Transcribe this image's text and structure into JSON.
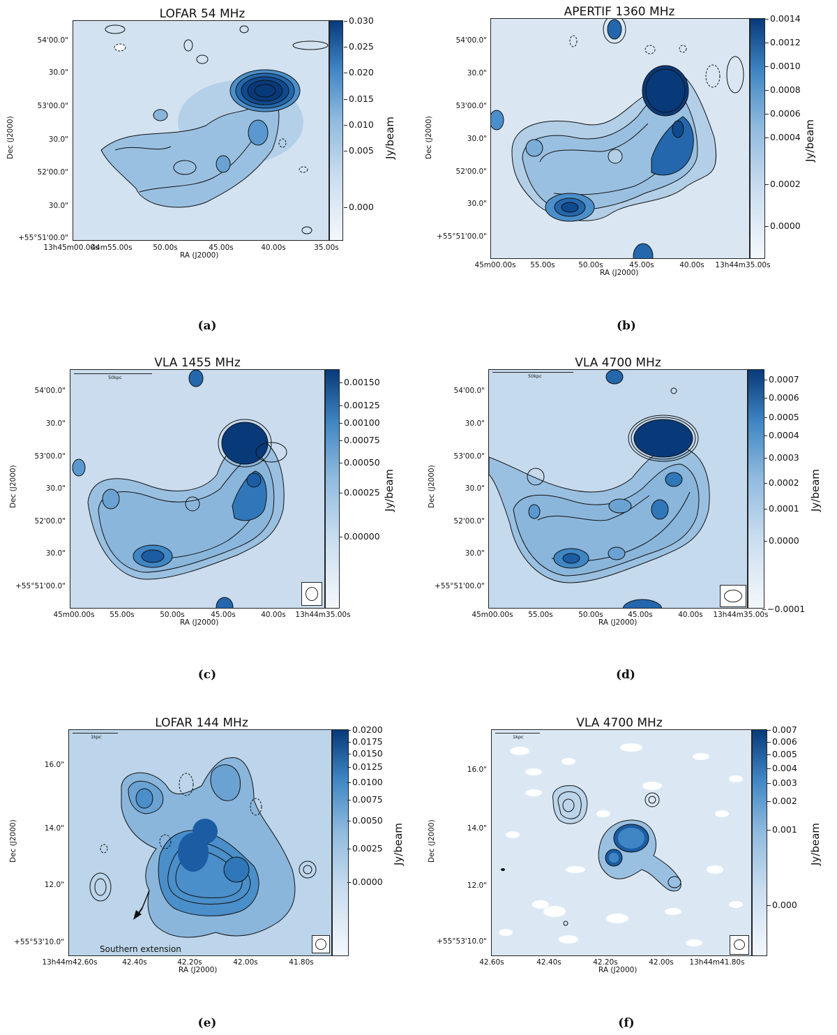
{
  "panels": [
    {
      "title": "LOFAR 54 MHz",
      "caption": "(a)",
      "colorbar": {
        "label": "Jy/beam",
        "ticks": [
          "0.030",
          "0.025",
          "0.020",
          "0.015",
          "0.010",
          "0.005",
          "0.000"
        ]
      },
      "yticks": [
        "54'00.0\"",
        "30.0\"",
        "53'00.0\"",
        "30.0\"",
        "52'00.0\"",
        "30.0\"",
        "+55°51'00.0\""
      ],
      "xticks": [
        "13h45m00.00s",
        "44m55.00s",
        "50.00s",
        "45.00s",
        "40.00s",
        "35.00s"
      ],
      "xlabel": "RA (J2000)",
      "ylabel": "Dec (J2000)"
    },
    {
      "title": "APERTIF 1360 MHz",
      "caption": "(b)",
      "colorbar": {
        "label": "Jy/beam",
        "ticks": [
          "0.0014",
          "0.0012",
          "0.0010",
          "0.0008",
          "0.0006",
          "0.0004",
          "0.0002",
          "0.0000"
        ]
      },
      "yticks": [
        "54'00.0\"",
        "30.0\"",
        "53'00.0\"",
        "30.0\"",
        "52'00.0\"",
        "30.0\"",
        "+55°51'00.0\""
      ],
      "xticks": [
        "45m00.00s",
        "55.00s",
        "50.00s",
        "45.00s",
        "40.00s",
        "13h44m35.00s"
      ],
      "xlabel": "RA (J2000)",
      "ylabel": "Dec (J2000)"
    },
    {
      "title": "VLA 1455 MHz",
      "caption": "(c)",
      "scalebar": "50kpc",
      "colorbar": {
        "label": "Jy/beam",
        "ticks": [
          "0.00150",
          "0.00125",
          "0.00100",
          "0.00075",
          "0.00050",
          "0.00025",
          "0.00000"
        ]
      },
      "yticks": [
        "54'00.0\"",
        "30.0\"",
        "53'00.0\"",
        "30.0\"",
        "52'00.0\"",
        "30.0\"",
        "+55°51'00.0\""
      ],
      "xticks": [
        "45m00.00s",
        "55.00s",
        "50.00s",
        "45.00s",
        "40.00s",
        "13h44m35.00s"
      ],
      "xlabel": "RA (J2000)",
      "ylabel": "Dec (J2000)"
    },
    {
      "title": "VLA 4700 MHz",
      "caption": "(d)",
      "scalebar": "50kpc",
      "colorbar": {
        "label": "Jy/beam",
        "ticks": [
          "0.0007",
          "0.0006",
          "0.0005",
          "0.0004",
          "0.0003",
          "0.0002",
          "0.0001",
          "0.0000",
          "−0.0001"
        ]
      },
      "yticks": [
        "54'00.0\"",
        "30.0\"",
        "53'00.0\"",
        "30.0\"",
        "52'00.0\"",
        "30.0\"",
        "+55°51'00.0\""
      ],
      "xticks": [
        "45m00.00s",
        "55.00s",
        "50.00s",
        "45.00s",
        "40.00s",
        "13h44m35.00s"
      ],
      "xlabel": "RA (J2000)",
      "ylabel": "Dec (J2000)"
    },
    {
      "title": "LOFAR 144 MHz",
      "caption": "(e)",
      "scalebar": "1kpc",
      "annotation": "Southern extension",
      "colorbar": {
        "label": "Jy/beam",
        "ticks": [
          "0.0200",
          "0.0175",
          "0.0150",
          "0.0125",
          "0.0100",
          "0.0075",
          "0.0050",
          "0.0025",
          "0.0000"
        ]
      },
      "yticks": [
        "16.0\"",
        "14.0\"",
        "12.0\"",
        "+55°53'10.0\""
      ],
      "xticks": [
        "13h44m42.60s",
        "42.40s",
        "42.20s",
        "42.00s",
        "41.80s"
      ],
      "xlabel": "RA (J2000)",
      "ylabel": "Dec (J2000)"
    },
    {
      "title": "VLA 4700 MHz",
      "caption": "(f)",
      "scalebar": "1kpc",
      "colorbar": {
        "label": "Jy/beam",
        "ticks": [
          "0.007",
          "0.006",
          "0.005",
          "0.004",
          "0.003",
          "0.002",
          "0.001",
          "0.000"
        ]
      },
      "yticks": [
        "16.0\"",
        "14.0\"",
        "12.0\"",
        "+55°53'10.0\""
      ],
      "xticks": [
        "42.60s",
        "42.40s",
        "42.20s",
        "42.00s",
        "13h44m41.80s"
      ],
      "xlabel": "RA (J2000)",
      "ylabel": "Dec (J2000)"
    }
  ]
}
